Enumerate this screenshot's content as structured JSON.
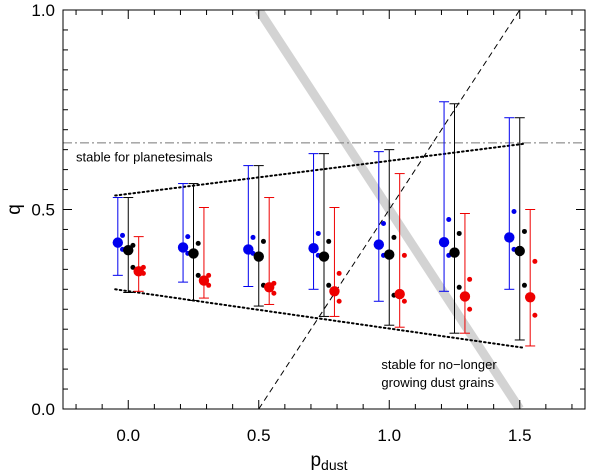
{
  "chart_data": {
    "type": "scatter",
    "title": "",
    "xlabel_main": "p",
    "xlabel_sub": "dust",
    "ylabel": "q",
    "xlim": [
      -0.25,
      1.75
    ],
    "ylim": [
      0.0,
      1.0
    ],
    "x_major_ticks": [
      0.0,
      0.5,
      1.0,
      1.5
    ],
    "x_tick_labels": [
      "0.0",
      "0.5",
      "1.0",
      "1.5"
    ],
    "y_major_ticks": [
      0.0,
      0.5,
      1.0
    ],
    "y_tick_labels": [
      "0.0",
      "0.5",
      "1.0"
    ],
    "x_minor_step": 0.1,
    "y_minor_step": 0.05,
    "grid": false,
    "x_groups": [
      0.0,
      0.25,
      0.5,
      0.75,
      1.0,
      1.25,
      1.5
    ],
    "series": [
      {
        "name": "blue",
        "color": "#0000ee",
        "offset": -0.04,
        "means": [
          0.417,
          0.405,
          0.4,
          0.403,
          0.412,
          0.418,
          0.43
        ],
        "err_low": [
          0.335,
          0.318,
          0.307,
          0.3,
          0.27,
          0.295,
          0.3
        ],
        "err_high": [
          0.53,
          0.565,
          0.61,
          0.64,
          0.645,
          0.77,
          0.73
        ],
        "extra_points": [
          [
            0.435,
            0.4
          ],
          [
            0.432,
            0.39
          ],
          [
            0.43,
            0.39
          ],
          [
            0.44,
            0.385
          ],
          [
            0.465,
            0.385
          ],
          [
            0.475,
            0.385
          ],
          [
            0.495,
            0.4
          ]
        ]
      },
      {
        "name": "black",
        "color": "#000000",
        "offset": 0.0,
        "means": [
          0.398,
          0.39,
          0.382,
          0.382,
          0.387,
          0.392,
          0.396
        ],
        "err_low": [
          0.292,
          0.272,
          0.258,
          0.232,
          0.21,
          0.19,
          0.173
        ],
        "err_high": [
          0.53,
          0.565,
          0.61,
          0.64,
          0.65,
          0.765,
          0.73
        ],
        "extra_points": [
          [
            0.41,
            0.355
          ],
          [
            0.415,
            0.335
          ],
          [
            0.42,
            0.31
          ],
          [
            0.42,
            0.31
          ],
          [
            0.43,
            0.285
          ],
          [
            0.44,
            0.305
          ],
          [
            0.445,
            0.31
          ]
        ]
      },
      {
        "name": "red",
        "color": "#ee0000",
        "offset": 0.04,
        "means": [
          0.345,
          0.322,
          0.305,
          0.295,
          0.288,
          0.282,
          0.28
        ],
        "err_low": [
          0.295,
          0.278,
          0.262,
          0.232,
          0.205,
          0.19,
          0.158
        ],
        "err_high": [
          0.432,
          0.505,
          0.53,
          0.505,
          0.59,
          0.49,
          0.5
        ],
        "extra_points": [
          [
            0.355,
            0.34
          ],
          [
            0.335,
            0.31
          ],
          [
            0.315,
            0.29
          ],
          [
            0.34,
            0.27
          ],
          [
            0.385,
            0.27
          ],
          [
            0.325,
            0.25
          ],
          [
            0.37,
            0.235
          ]
        ]
      }
    ],
    "reference_lines": [
      {
        "name": "dash-dot-horizontal",
        "style": "dashdot",
        "color": "#777777",
        "points": [
          [
            -0.25,
            0.667
          ],
          [
            1.75,
            0.667
          ]
        ]
      },
      {
        "name": "upper-dotted-envelope",
        "style": "dotted",
        "color": "#000000",
        "points": [
          [
            -0.05,
            0.535
          ],
          [
            1.52,
            0.665
          ]
        ]
      },
      {
        "name": "lower-dotted-envelope",
        "style": "dotted",
        "color": "#000000",
        "points": [
          [
            -0.05,
            0.3
          ],
          [
            1.52,
            0.153
          ]
        ]
      },
      {
        "name": "dashed-diagonal",
        "style": "dashed",
        "color": "#000000",
        "points": [
          [
            0.5,
            0.0
          ],
          [
            1.5,
            1.0
          ]
        ]
      },
      {
        "name": "gray-band",
        "style": "band",
        "color": "#d3d3d3",
        "points": [
          [
            0.5,
            1.0
          ],
          [
            1.5,
            0.0
          ]
        ]
      }
    ],
    "annotations": [
      {
        "name": "stable-planetesimals-label",
        "lines": [
          "stable for planetesimals"
        ],
        "x": -0.2,
        "y": 0.62
      },
      {
        "name": "stable-dust-label",
        "lines": [
          "stable for no−longer",
          "growing dust grains"
        ],
        "x": 0.97,
        "y": 0.1
      }
    ]
  }
}
